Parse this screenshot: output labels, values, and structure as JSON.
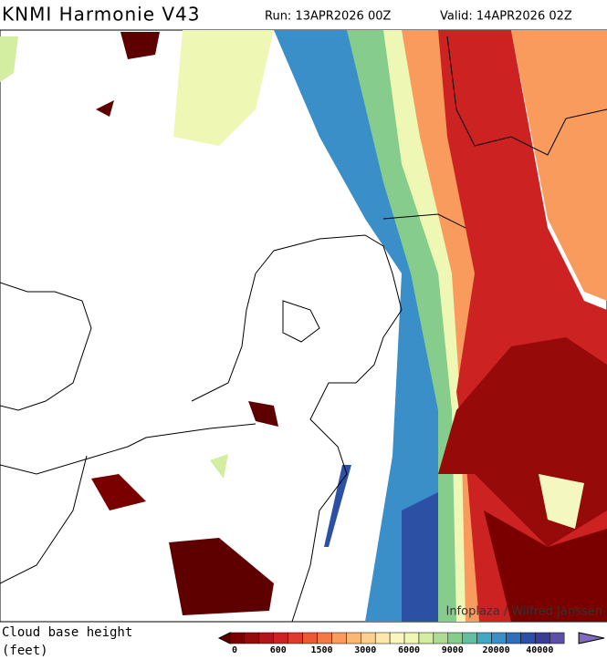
{
  "header": {
    "title": "KNMI Harmonie V43",
    "run": "Run: 13APR2026 00Z",
    "valid": "Valid: 14APR2026 02Z"
  },
  "map": {
    "credit": "Infoplaza / Wilfred Janssen"
  },
  "legend": {
    "label_line1": "Cloud base height",
    "label_line2": "(feet)",
    "colors": [
      "#5e0000",
      "#7a0000",
      "#960a0a",
      "#b3141a",
      "#cc2222",
      "#df3b2a",
      "#ec5a33",
      "#f47a45",
      "#f99b5c",
      "#fcb774",
      "#fdd08f",
      "#fee7ab",
      "#fbf6bd",
      "#eef7b4",
      "#d3eea0",
      "#aedc95",
      "#86cc8c",
      "#62bfa0",
      "#43a8c4",
      "#3a8fc8",
      "#2f6fb8",
      "#2b50a4",
      "#3a3d96",
      "#5b4fa6",
      "#7f6cbf"
    ],
    "ticks": [
      "0",
      "600",
      "1500",
      "3000",
      "6000",
      "9000",
      "20000",
      "40000"
    ]
  }
}
